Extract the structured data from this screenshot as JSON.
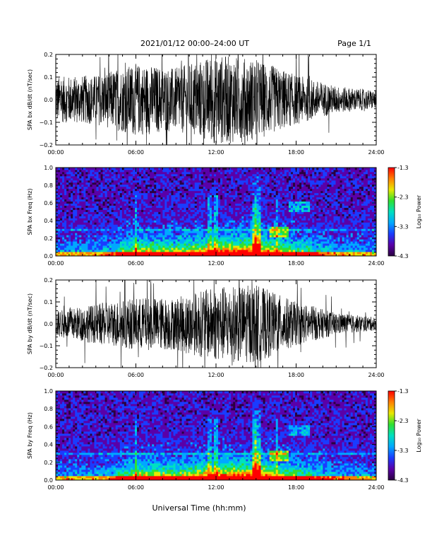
{
  "header": {
    "title": "2021/01/12  00:00–24:00 UT",
    "page": "Page 1/1"
  },
  "xaxis": {
    "label": "Universal Time (hh:mm)",
    "ticks": [
      "00:00",
      "06:00",
      "12:00",
      "18:00",
      "24:00"
    ],
    "range_hours": [
      0,
      24
    ]
  },
  "colorbar": {
    "label": "Log₁₀ Power",
    "ticks": [
      "-1.3",
      "-2.3",
      "-3.3",
      "-4.3"
    ],
    "range": [
      -4.3,
      -1.3
    ],
    "colors": [
      "#2a0040",
      "#5a00a8",
      "#1a3cff",
      "#00a8ff",
      "#00e0c0",
      "#30e030",
      "#e8e800",
      "#ff8000",
      "#ff0000"
    ]
  },
  "chart_data": [
    {
      "type": "line",
      "ylabel": "SPA bx dB/dt (nT/sec)",
      "ylim": [
        -0.2,
        0.2
      ],
      "yticks": [
        "0.2",
        "0.1",
        "0.0",
        "−0.1",
        "−0.2"
      ],
      "envelope": {
        "x_hours": [
          0,
          3,
          6,
          9,
          12,
          15,
          18,
          21,
          24
        ],
        "amplitude": [
          0.1,
          0.11,
          0.16,
          0.14,
          0.2,
          0.18,
          0.11,
          0.06,
          0.04
        ]
      }
    },
    {
      "type": "heatmap",
      "ylabel": "SPA bx Freq (Hz)",
      "ylim": [
        0,
        1.0
      ],
      "yticks": [
        "1.0",
        "0.8",
        "0.6",
        "0.4",
        "0.2",
        "0.0"
      ],
      "zlim": [
        -4.3,
        -1.3
      ]
    },
    {
      "type": "line",
      "ylabel": "SPA by dB/dt (nT/sec)",
      "ylim": [
        -0.2,
        0.2
      ],
      "yticks": [
        "0.2",
        "0.1",
        "0.0",
        "−0.1",
        "−0.2"
      ],
      "envelope": {
        "x_hours": [
          0,
          3,
          6,
          9,
          12,
          15,
          18,
          21,
          24
        ],
        "amplitude": [
          0.06,
          0.09,
          0.12,
          0.12,
          0.17,
          0.18,
          0.1,
          0.05,
          0.03
        ]
      }
    },
    {
      "type": "heatmap",
      "ylabel": "SPA by Freq (Hz)",
      "ylim": [
        0,
        1.0
      ],
      "yticks": [
        "1.0",
        "0.8",
        "0.6",
        "0.4",
        "0.2",
        "0.0"
      ],
      "zlim": [
        -4.3,
        -1.3
      ]
    }
  ]
}
